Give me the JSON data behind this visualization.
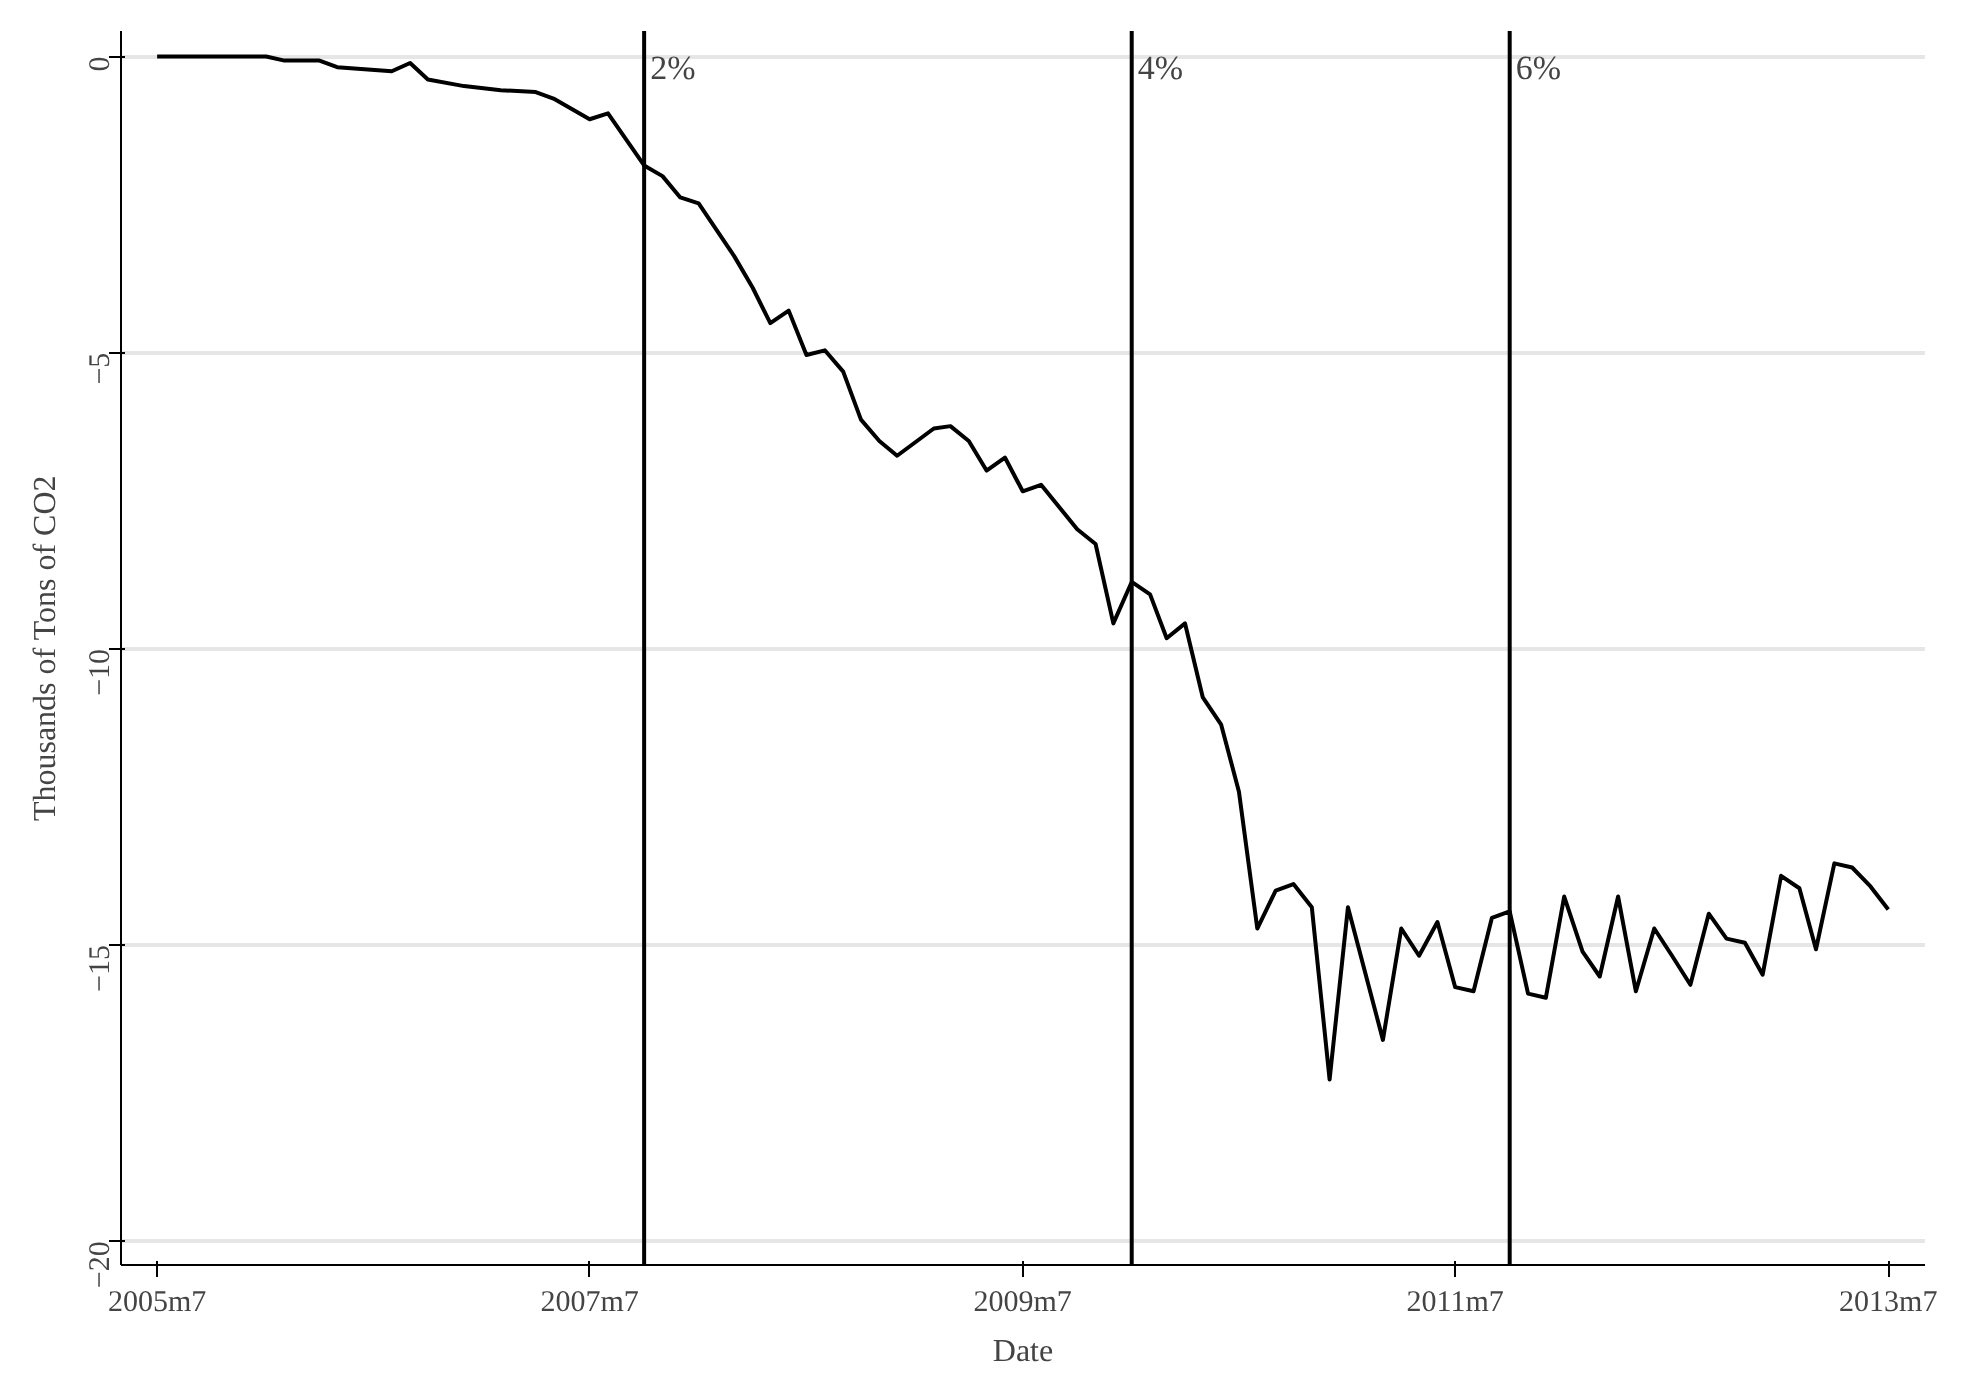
{
  "chart_data": {
    "type": "line",
    "xlabel": "Date",
    "ylabel": "Thousands of Tons of CO2",
    "xlim": [
      "2005-05",
      "2013-09"
    ],
    "ylim": [
      -20.4,
      0.43
    ],
    "xticks": [
      {
        "value": "2005-07",
        "label": "2005m7"
      },
      {
        "value": "2007-07",
        "label": "2007m7"
      },
      {
        "value": "2009-07",
        "label": "2009m7"
      },
      {
        "value": "2011-07",
        "label": "2011m7"
      },
      {
        "value": "2013-07",
        "label": "2013m7"
      }
    ],
    "yticks": [
      0,
      -5,
      -10,
      -15,
      -20
    ],
    "grid": "y",
    "marker": "none",
    "line_style": "solid",
    "ref_lines": [
      {
        "axis": "x",
        "value": "2007-10",
        "label": "2%",
        "color": "#000000"
      },
      {
        "axis": "x",
        "value": "2010-01",
        "label": "4%",
        "color": "#000000"
      },
      {
        "axis": "x",
        "value": "2011-10",
        "label": "6%",
        "color": "#000000"
      }
    ],
    "series": [
      {
        "color": "#000000",
        "x": [
          "2005-07",
          "2006-01",
          "2006-02",
          "2006-04",
          "2006-05",
          "2006-08",
          "2006-09",
          "2006-10",
          "2006-12",
          "2007-02",
          "2007-04",
          "2007-05",
          "2007-07",
          "2007-08",
          "2007-10",
          "2007-11",
          "2007-12",
          "2008-01",
          "2008-03",
          "2008-04",
          "2008-05",
          "2008-06",
          "2008-07",
          "2008-08",
          "2008-09",
          "2008-10",
          "2008-11",
          "2008-12",
          "2009-02",
          "2009-03",
          "2009-04",
          "2009-05",
          "2009-06",
          "2009-07",
          "2009-08",
          "2009-10",
          "2009-11",
          "2009-12",
          "2010-01",
          "2010-02",
          "2010-03",
          "2010-04",
          "2010-05",
          "2010-06",
          "2010-07",
          "2010-08",
          "2010-09",
          "2010-10",
          "2010-11",
          "2010-12",
          "2011-01",
          "2011-03",
          "2011-04",
          "2011-05",
          "2011-06",
          "2011-07",
          "2011-08",
          "2011-09",
          "2011-10",
          "2011-11",
          "2011-12",
          "2012-01",
          "2012-02",
          "2012-03",
          "2012-04",
          "2012-05",
          "2012-06",
          "2012-07",
          "2012-08",
          "2012-09",
          "2012-10",
          "2012-11",
          "2012-12",
          "2013-01",
          "2013-02",
          "2013-03",
          "2013-04",
          "2013-05",
          "2013-06",
          "2013-07"
        ],
        "values": [
          0,
          0,
          -0.07,
          -0.07,
          -0.18,
          -0.25,
          -0.11,
          -0.39,
          -0.5,
          -0.57,
          -0.6,
          -0.71,
          -1.06,
          -0.96,
          -1.84,
          -2.02,
          -2.38,
          -2.48,
          -3.37,
          -3.9,
          -4.5,
          -4.29,
          -5.04,
          -4.96,
          -5.32,
          -6.13,
          -6.49,
          -6.74,
          -6.28,
          -6.24,
          -6.49,
          -6.99,
          -6.77,
          -7.34,
          -7.23,
          -7.98,
          -8.23,
          -9.57,
          -8.87,
          -9.08,
          -9.82,
          -9.57,
          -10.82,
          -11.28,
          -12.41,
          -14.72,
          -14.08,
          -13.97,
          -14.36,
          -17.27,
          -14.36,
          -16.6,
          -14.72,
          -15.18,
          -14.61,
          -15.71,
          -15.78,
          -14.54,
          -14.43,
          -15.82,
          -15.89,
          -14.18,
          -15.11,
          -15.53,
          -14.18,
          -15.78,
          -14.72,
          -15.18,
          -15.67,
          -14.47,
          -14.89,
          -14.96,
          -15.5,
          -13.83,
          -14.04,
          -15.07,
          -13.62,
          -13.69,
          -14.01,
          -14.4
        ]
      }
    ]
  }
}
